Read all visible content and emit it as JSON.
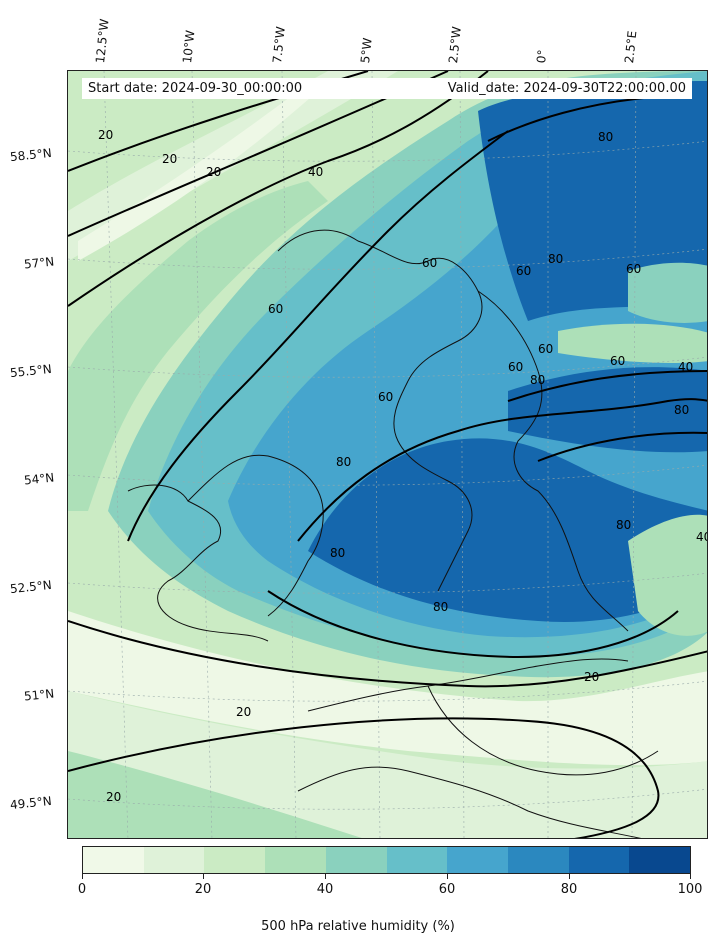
{
  "header": {
    "start_label": "Start date: 2024-09-30_00:00:00",
    "valid_label": "Valid_date: 2024-09-30T22:00:00.00"
  },
  "longitude_labels": [
    "12.5°W",
    "10°W",
    "7.5°W",
    "5°W",
    "2.5°W",
    "0°",
    "2.5°E"
  ],
  "latitude_labels": [
    "58.5°N",
    "57°N",
    "55.5°N",
    "54°N",
    "52.5°N",
    "51°N",
    "49.5°N"
  ],
  "contour_labels": [
    "20",
    "20",
    "20",
    "20",
    "20",
    "20",
    "40",
    "40",
    "40",
    "60",
    "60",
    "60",
    "60",
    "60",
    "60",
    "60",
    "60",
    "80",
    "80",
    "80",
    "80",
    "80",
    "80",
    "80",
    "80"
  ],
  "colorbar": {
    "label": "500 hPa relative humidity (%)",
    "ticks": [
      "0",
      "20",
      "40",
      "60",
      "80",
      "100"
    ],
    "colors": [
      "#f0f9e8",
      "#dff2d9",
      "#cbebc4",
      "#ade0b8",
      "#8ad1be",
      "#66bfc9",
      "#46a5cd",
      "#2b88bf",
      "#1567ad",
      "#08488f"
    ]
  },
  "map": {
    "sea_color": "#cbebc4",
    "dry_band_color": "#eef8e6",
    "moist_colors": [
      "#8ad1be",
      "#66bfc9",
      "#46a5cd",
      "#2b88bf",
      "#1567ad"
    ]
  }
}
